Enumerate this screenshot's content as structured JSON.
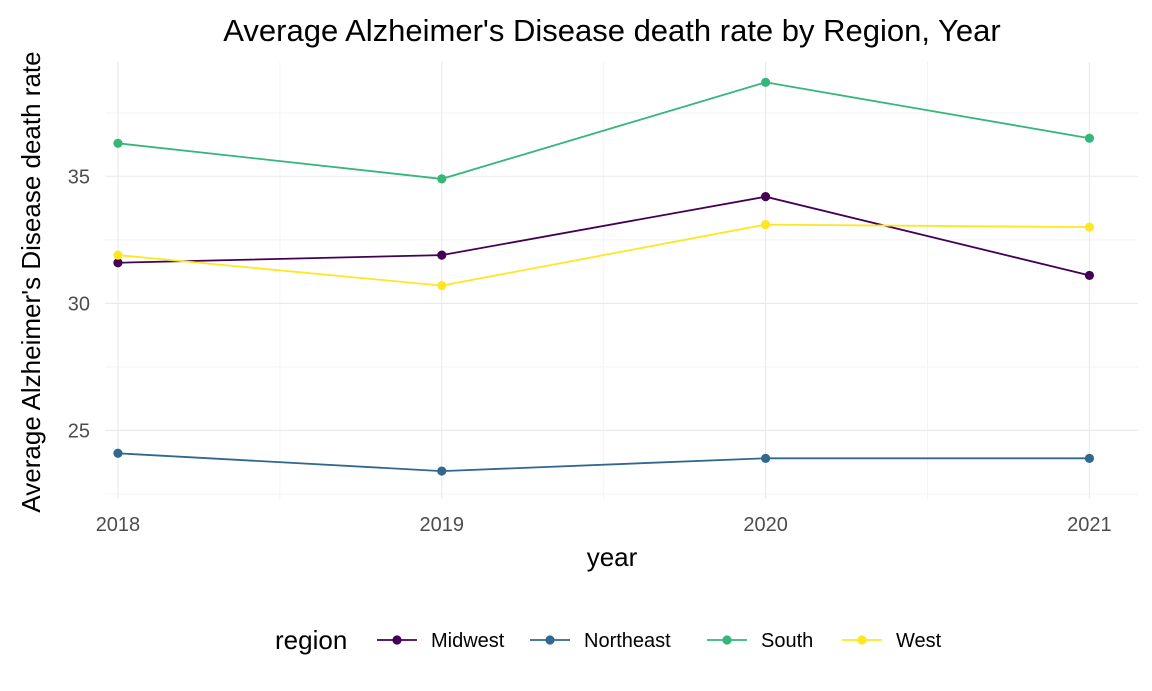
{
  "chart_data": {
    "type": "line",
    "title": "Average Alzheimer's Disease death rate by Region, Year",
    "xlabel": "year",
    "ylabel": "Average Alzheimer's Disease death rate",
    "x": [
      2018,
      2019,
      2020,
      2021
    ],
    "x_tick_labels": [
      "2018",
      "2019",
      "2020",
      "2021"
    ],
    "y_ticks": [
      25,
      30,
      35
    ],
    "y_tick_labels": [
      "25",
      "30",
      "35"
    ],
    "xlim": [
      2017.96,
      2021.15
    ],
    "ylim": [
      22.3,
      39.5
    ],
    "grid": true,
    "legend": {
      "title": "region",
      "position": "bottom"
    },
    "series": [
      {
        "name": "Midwest",
        "color": "#440154",
        "values": [
          31.6,
          31.9,
          34.2,
          31.1
        ]
      },
      {
        "name": "Northeast",
        "color": "#31688e",
        "values": [
          24.1,
          23.4,
          23.9,
          23.9
        ]
      },
      {
        "name": "South",
        "color": "#35b779",
        "values": [
          36.3,
          34.9,
          38.7,
          36.5
        ]
      },
      {
        "name": "West",
        "color": "#fde725",
        "values": [
          31.9,
          30.7,
          33.1,
          33.0
        ]
      }
    ]
  }
}
